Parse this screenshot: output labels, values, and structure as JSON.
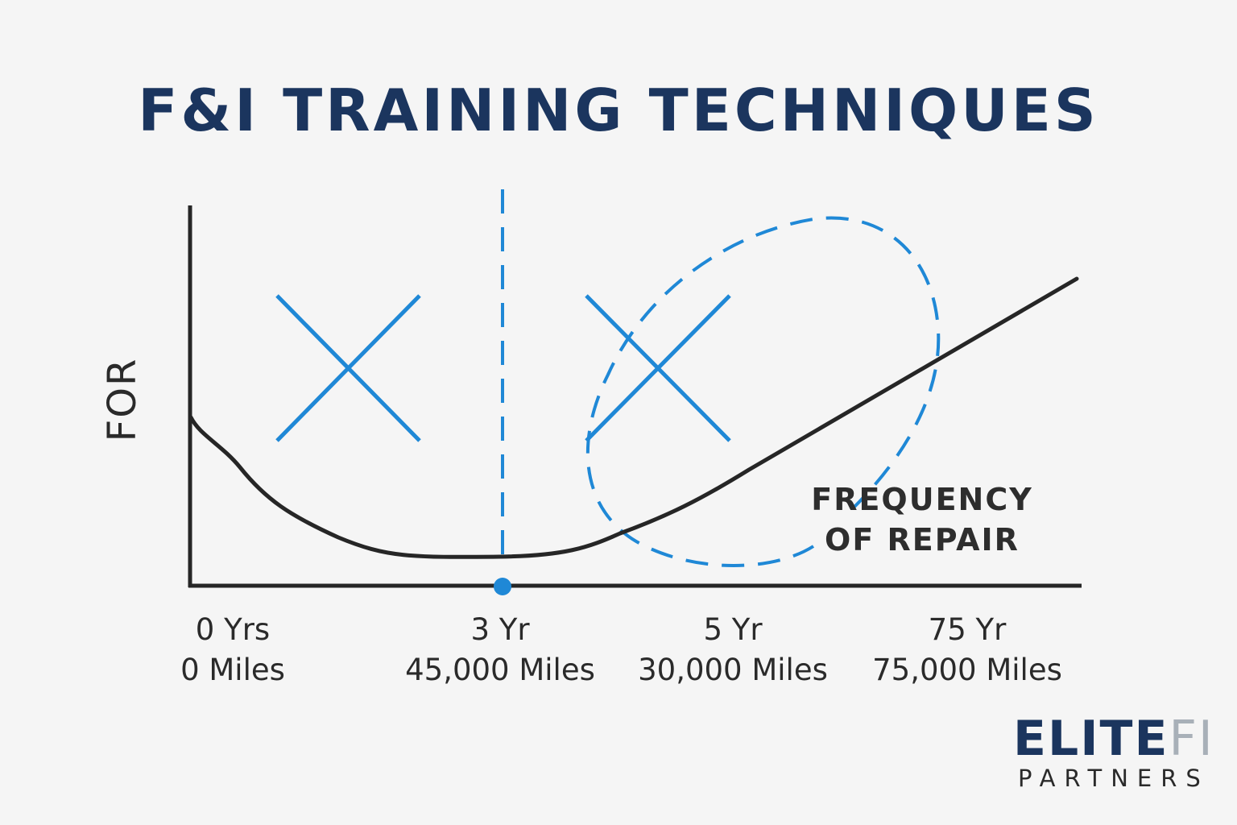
{
  "title": "F&I TRAINING TECHNIQUES",
  "y_axis_label": "FOR",
  "x_labels": [
    {
      "line1": "0 Yrs",
      "line2": "0 Miles"
    },
    {
      "line1": "3 Yr",
      "line2": "45,000 Miles"
    },
    {
      "line1": "5 Yr",
      "line2": "30,000 Miles"
    },
    {
      "line1": "75 Yr",
      "line2": "75,000 Miles"
    }
  ],
  "annotation": {
    "line1": "FREQUENCY",
    "line2": "OF REPAIR"
  },
  "logo": {
    "main": "ELITE",
    "accent": "FI",
    "sub": "PARTNERS"
  },
  "colors": {
    "navy": "#1b355e",
    "blue": "#1f88d6",
    "curve": "#262626",
    "logo_accent": "#a8b0b8"
  }
}
